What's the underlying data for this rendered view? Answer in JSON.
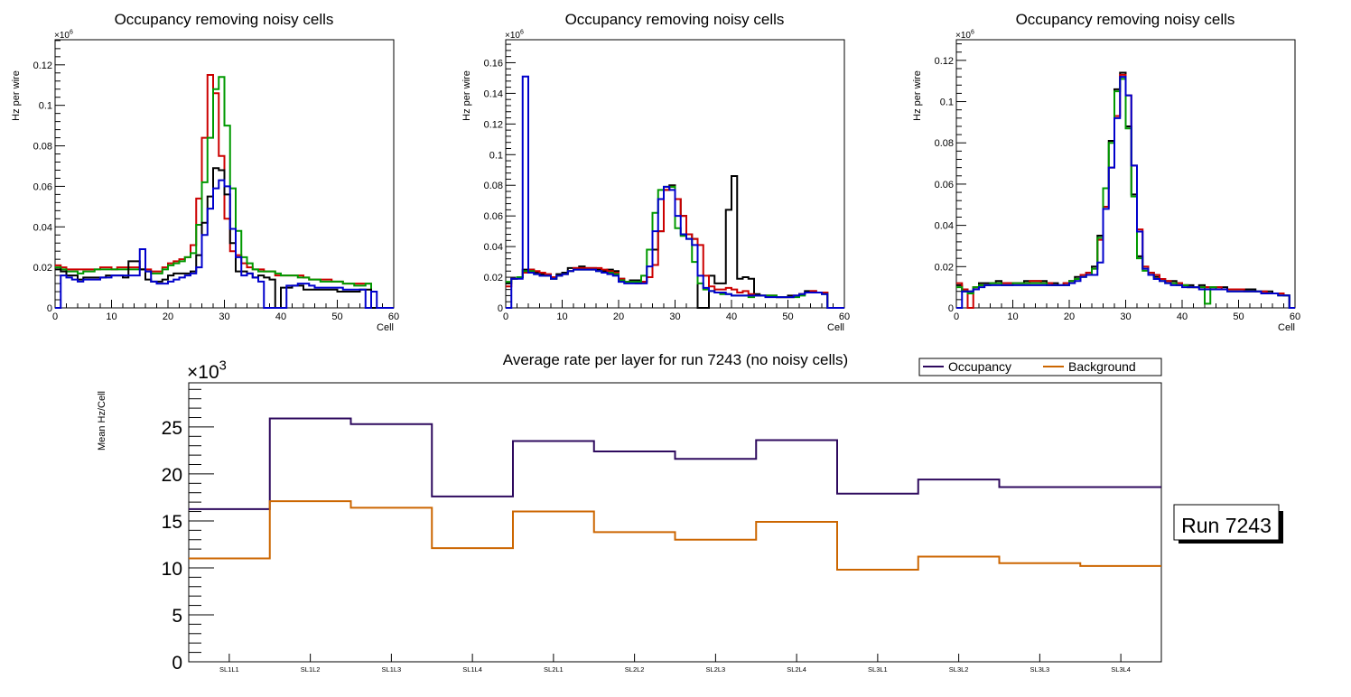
{
  "chart_data": [
    {
      "type": "histogram",
      "title": "Occupancy removing noisy cells",
      "xlabel": "Cell",
      "ylabel": "Hz per wire",
      "y_exponent": "×10^6",
      "xlim": [
        0,
        60
      ],
      "ylim": [
        0,
        0.1324
      ],
      "xticks": [
        "0",
        "10",
        "20",
        "30",
        "40",
        "50",
        "60"
      ],
      "yticks": [
        {
          "v": 0,
          "label": "0"
        },
        {
          "v": 0.02,
          "label": "0.02"
        },
        {
          "v": 0.04,
          "label": "0.04"
        },
        {
          "v": 0.06,
          "label": "0.06"
        },
        {
          "v": 0.08,
          "label": "0.08"
        },
        {
          "v": 0.1,
          "label": "0.1"
        },
        {
          "v": 0.12,
          "label": "0.12"
        }
      ],
      "series": [
        {
          "name": "red",
          "color": "#cc0000",
          "values": [
            0.021,
            0.02,
            0.019,
            0.019,
            0.019,
            0.019,
            0.019,
            0.019,
            0.02,
            0.02,
            0.019,
            0.02,
            0.02,
            0.02,
            0.02,
            0.019,
            0.019,
            0.018,
            0.018,
            0.02,
            0.022,
            0.023,
            0.024,
            0.025,
            0.031,
            0.054,
            0.084,
            0.115,
            0.106,
            0.075,
            0.044,
            0.028,
            0.026,
            0.022,
            0.02,
            0.019,
            0.019,
            0.018,
            0.018,
            0.016,
            0.016,
            0.016,
            0.016,
            0.016,
            0.015,
            0.014,
            0.014,
            0.014,
            0.014,
            0.013,
            0.013,
            0.012,
            0.012,
            0.012,
            0.012,
            0.012,
            0,
            0,
            0,
            0
          ]
        },
        {
          "name": "green",
          "color": "#009900",
          "values": [
            0.02,
            0.019,
            0.018,
            0.018,
            0.017,
            0.018,
            0.018,
            0.019,
            0.019,
            0.019,
            0.019,
            0.019,
            0.019,
            0.019,
            0.019,
            0.019,
            0.018,
            0.017,
            0.017,
            0.019,
            0.021,
            0.022,
            0.023,
            0.025,
            0.027,
            0.041,
            0.062,
            0.084,
            0.108,
            0.114,
            0.09,
            0.059,
            0.038,
            0.025,
            0.022,
            0.019,
            0.018,
            0.018,
            0.018,
            0.017,
            0.016,
            0.016,
            0.016,
            0.015,
            0.015,
            0.014,
            0.014,
            0.013,
            0.013,
            0.013,
            0.013,
            0.012,
            0.012,
            0.011,
            0.011,
            0.012,
            0,
            0,
            0,
            0
          ]
        },
        {
          "name": "black",
          "color": "#000000",
          "values": [
            0.019,
            0.018,
            0.016,
            0.016,
            0.014,
            0.015,
            0.015,
            0.015,
            0.015,
            0.016,
            0.016,
            0.016,
            0.015,
            0.023,
            0.023,
            0.019,
            0.014,
            0.013,
            0.013,
            0.014,
            0.016,
            0.017,
            0.017,
            0.017,
            0.018,
            0.026,
            0.042,
            0.055,
            0.069,
            0.068,
            0.056,
            0.032,
            0.018,
            0.018,
            0.017,
            0.015,
            0.016,
            0.015,
            0.014,
            0,
            0.01,
            0.01,
            0.011,
            0.011,
            0.009,
            0.009,
            0.009,
            0.009,
            0.009,
            0.009,
            0.008,
            0.008,
            0.008,
            0.008,
            0.009,
            0.009,
            0,
            0,
            0,
            0
          ]
        },
        {
          "name": "blue",
          "color": "#0000cc",
          "values": [
            0,
            0.016,
            0.015,
            0.014,
            0.013,
            0.014,
            0.014,
            0.014,
            0.015,
            0.015,
            0.016,
            0.016,
            0.016,
            0.016,
            0.016,
            0.029,
            0.018,
            0.013,
            0.012,
            0.012,
            0.013,
            0.014,
            0.015,
            0.016,
            0.017,
            0.02,
            0.036,
            0.049,
            0.059,
            0.063,
            0.06,
            0.039,
            0.025,
            0.016,
            0.017,
            0.015,
            0.013,
            0,
            0,
            0,
            0,
            0.011,
            0.011,
            0.012,
            0.012,
            0.011,
            0.01,
            0.01,
            0.01,
            0.01,
            0.01,
            0.009,
            0.009,
            0.009,
            0.009,
            0,
            0.008,
            0,
            0,
            0
          ]
        }
      ]
    },
    {
      "type": "histogram",
      "title": "Occupancy removing noisy cells",
      "xlabel": "Cell",
      "ylabel": "Hz per wire",
      "y_exponent": "×10^6",
      "xlim": [
        0,
        60
      ],
      "ylim": [
        0,
        0.175
      ],
      "xticks": [
        "0",
        "10",
        "20",
        "30",
        "40",
        "50",
        "60"
      ],
      "yticks": [
        {
          "v": 0,
          "label": "0"
        },
        {
          "v": 0.02,
          "label": "0.02"
        },
        {
          "v": 0.04,
          "label": "0.04"
        },
        {
          "v": 0.06,
          "label": "0.06"
        },
        {
          "v": 0.08,
          "label": "0.08"
        },
        {
          "v": 0.1,
          "label": "0.1"
        },
        {
          "v": 0.12,
          "label": "0.12"
        },
        {
          "v": 0.14,
          "label": "0.14"
        },
        {
          "v": 0.16,
          "label": "0.16"
        }
      ],
      "series": [
        {
          "name": "black",
          "color": "#000000",
          "values": [
            0.016,
            0.019,
            0.02,
            0.025,
            0.025,
            0.023,
            0.022,
            0.021,
            0.019,
            0.022,
            0.023,
            0.026,
            0.026,
            0.027,
            0.026,
            0.026,
            0.025,
            0.024,
            0.025,
            0.024,
            0.019,
            0.017,
            0.018,
            0.018,
            0.017,
            0.02,
            0.038,
            0.05,
            0.077,
            0.08,
            0.071,
            0.06,
            0.048,
            0.045,
            0,
            0,
            0.021,
            0.016,
            0.016,
            0.064,
            0.086,
            0.019,
            0.02,
            0.019,
            0.009,
            0.008,
            0.008,
            0.008,
            0.007,
            0.007,
            0.008,
            0.008,
            0.009,
            0.011,
            0.011,
            0.01,
            0.01,
            0,
            0,
            0
          ]
        },
        {
          "name": "red",
          "color": "#cc0000",
          "values": [
            0.014,
            0.019,
            0.02,
            0.023,
            0.025,
            0.024,
            0.023,
            0.022,
            0.02,
            0.021,
            0.022,
            0.024,
            0.026,
            0.026,
            0.026,
            0.026,
            0.026,
            0.025,
            0.024,
            0.023,
            0.019,
            0.017,
            0.017,
            0.016,
            0.017,
            0.02,
            0.028,
            0.05,
            0.077,
            0.079,
            0.071,
            0.06,
            0.048,
            0.045,
            0.041,
            0.021,
            0.014,
            0.012,
            0.012,
            0.013,
            0.012,
            0.01,
            0.011,
            0.009,
            0.008,
            0.008,
            0.008,
            0.008,
            0.007,
            0.007,
            0.007,
            0.008,
            0.009,
            0.01,
            0.011,
            0.01,
            0.01,
            0,
            0,
            0
          ]
        },
        {
          "name": "green",
          "color": "#009900",
          "values": [
            0.017,
            0.019,
            0.02,
            0.024,
            0.024,
            0.022,
            0.021,
            0.021,
            0.019,
            0.021,
            0.022,
            0.024,
            0.025,
            0.025,
            0.025,
            0.025,
            0.024,
            0.023,
            0.023,
            0.022,
            0.018,
            0.017,
            0.017,
            0.017,
            0.021,
            0.038,
            0.062,
            0.077,
            0.079,
            0.079,
            0.052,
            0.047,
            0.045,
            0.03,
            0.016,
            0.012,
            0.011,
            0.01,
            0.009,
            0.009,
            0.008,
            0.008,
            0.008,
            0.007,
            0.008,
            0.008,
            0.008,
            0.008,
            0.007,
            0.007,
            0.007,
            0.007,
            0.008,
            0.01,
            0.01,
            0.01,
            0.009,
            0,
            0,
            0
          ]
        },
        {
          "name": "blue",
          "color": "#0000cc",
          "values": [
            0,
            0.019,
            0.019,
            0.151,
            0.023,
            0.022,
            0.021,
            0.021,
            0.019,
            0.021,
            0.022,
            0.024,
            0.025,
            0.025,
            0.025,
            0.025,
            0.024,
            0.023,
            0.022,
            0.021,
            0.017,
            0.016,
            0.016,
            0.016,
            0.016,
            0.027,
            0.05,
            0.071,
            0.079,
            0.077,
            0.06,
            0.048,
            0.045,
            0.041,
            0.021,
            0.013,
            0.011,
            0.01,
            0.01,
            0.009,
            0.008,
            0.008,
            0.008,
            0.008,
            0.008,
            0.008,
            0.007,
            0.007,
            0.007,
            0.007,
            0.007,
            0.008,
            0.009,
            0.01,
            0.01,
            0.01,
            0.009,
            0,
            0,
            0
          ]
        }
      ]
    },
    {
      "type": "histogram",
      "title": "Occupancy removing noisy cells",
      "xlabel": "Cell",
      "ylabel": "Hz per wire",
      "y_exponent": "×10^6",
      "xlim": [
        0,
        60
      ],
      "ylim": [
        0,
        0.13
      ],
      "xticks": [
        "0",
        "10",
        "20",
        "30",
        "40",
        "50",
        "60"
      ],
      "yticks": [
        {
          "v": 0,
          "label": "0"
        },
        {
          "v": 0.02,
          "label": "0.02"
        },
        {
          "v": 0.04,
          "label": "0.04"
        },
        {
          "v": 0.06,
          "label": "0.06"
        },
        {
          "v": 0.08,
          "label": "0.08"
        },
        {
          "v": 0.1,
          "label": "0.1"
        },
        {
          "v": 0.12,
          "label": "0.12"
        }
      ],
      "series": [
        {
          "name": "black",
          "color": "#000000",
          "values": [
            0.011,
            0.008,
            0.008,
            0.01,
            0.012,
            0.012,
            0.012,
            0.013,
            0.012,
            0.012,
            0.012,
            0.012,
            0.013,
            0.013,
            0.013,
            0.013,
            0.012,
            0.012,
            0.011,
            0.012,
            0.013,
            0.015,
            0.016,
            0.017,
            0.02,
            0.035,
            0.058,
            0.081,
            0.106,
            0.114,
            0.088,
            0.055,
            0.025,
            0.019,
            0.017,
            0.015,
            0.014,
            0.013,
            0.013,
            0.012,
            0.011,
            0.011,
            0.01,
            0.011,
            0.01,
            0.01,
            0.01,
            0.01,
            0.009,
            0.009,
            0.009,
            0.009,
            0.009,
            0.008,
            0.008,
            0.008,
            0.007,
            0.007,
            0.006,
            0
          ]
        },
        {
          "name": "red",
          "color": "#cc0000",
          "values": [
            0.012,
            0.009,
            0,
            0.01,
            0.011,
            0.011,
            0.012,
            0.012,
            0.012,
            0.012,
            0.012,
            0.012,
            0.012,
            0.013,
            0.013,
            0.012,
            0.012,
            0.011,
            0.011,
            0.012,
            0.013,
            0.014,
            0.016,
            0.017,
            0.019,
            0.033,
            0.049,
            0.068,
            0.093,
            0.113,
            0.103,
            0.069,
            0.038,
            0.02,
            0.017,
            0.016,
            0.014,
            0.013,
            0.012,
            0.012,
            0.011,
            0.01,
            0.01,
            0.01,
            0.01,
            0.01,
            0.01,
            0.009,
            0.009,
            0.009,
            0.009,
            0.008,
            0.008,
            0.008,
            0.008,
            0.007,
            0.007,
            0.007,
            0.006,
            0
          ]
        },
        {
          "name": "green",
          "color": "#009900",
          "values": [
            0.01,
            0.008,
            0.007,
            0.01,
            0.011,
            0.011,
            0.012,
            0.012,
            0.011,
            0.011,
            0.012,
            0.012,
            0.012,
            0.012,
            0.012,
            0.012,
            0.011,
            0.011,
            0.011,
            0.011,
            0.013,
            0.014,
            0.015,
            0.016,
            0.019,
            0.034,
            0.058,
            0.08,
            0.105,
            0.111,
            0.087,
            0.054,
            0.024,
            0.018,
            0.016,
            0.014,
            0.013,
            0.012,
            0.012,
            0.011,
            0.011,
            0.01,
            0.01,
            0.01,
            0.002,
            0.01,
            0.009,
            0.009,
            0.008,
            0.008,
            0.008,
            0.008,
            0.008,
            0.008,
            0.007,
            0.007,
            0.007,
            0.006,
            0.006,
            0
          ]
        },
        {
          "name": "blue",
          "color": "#0000cc",
          "values": [
            0,
            0.008,
            0.008,
            0.009,
            0.01,
            0.011,
            0.011,
            0.011,
            0.011,
            0.011,
            0.011,
            0.011,
            0.011,
            0.011,
            0.011,
            0.011,
            0.011,
            0.011,
            0.011,
            0.011,
            0.012,
            0.013,
            0.015,
            0.016,
            0.016,
            0.022,
            0.048,
            0.068,
            0.092,
            0.112,
            0.103,
            0.069,
            0.037,
            0.019,
            0.016,
            0.014,
            0.013,
            0.012,
            0.011,
            0.011,
            0.01,
            0.01,
            0.01,
            0.009,
            0.009,
            0.009,
            0.009,
            0.009,
            0.008,
            0.008,
            0.008,
            0.008,
            0.008,
            0.008,
            0.007,
            0.007,
            0.007,
            0.006,
            0.006,
            0
          ]
        }
      ]
    },
    {
      "type": "histogram",
      "title": "Average rate per layer for run 7243 (no noisy cells)",
      "xlabel": "",
      "ylabel": "Mean Hz/Cell",
      "y_exponent": "×10^3",
      "ylim": [
        0,
        29.7
      ],
      "yticks": [
        {
          "v": 0,
          "label": "0"
        },
        {
          "v": 5,
          "label": "5"
        },
        {
          "v": 10,
          "label": "10"
        },
        {
          "v": 15,
          "label": "15"
        },
        {
          "v": 20,
          "label": "20"
        },
        {
          "v": 25,
          "label": "25"
        }
      ],
      "categories": [
        "SL1L1",
        "SL1L2",
        "SL1L3",
        "SL1L4",
        "SL2L1",
        "SL2L2",
        "SL2L3",
        "SL2L4",
        "SL3L1",
        "SL3L2",
        "SL3L3",
        "SL3L4"
      ],
      "legend": {
        "placement": "top-right"
      },
      "series": [
        {
          "name": "Occupancy",
          "color": "#2e0a5e",
          "values": [
            16.25,
            25.9,
            25.3,
            17.6,
            23.5,
            22.4,
            21.6,
            23.6,
            17.9,
            19.4,
            18.6,
            18.6
          ]
        },
        {
          "name": "Background",
          "color": "#cc6600",
          "values": [
            11.0,
            17.1,
            16.4,
            12.1,
            16.0,
            13.8,
            13.0,
            14.9,
            9.8,
            11.2,
            10.5,
            10.2
          ]
        }
      ],
      "annotation": "Run 7243"
    }
  ]
}
